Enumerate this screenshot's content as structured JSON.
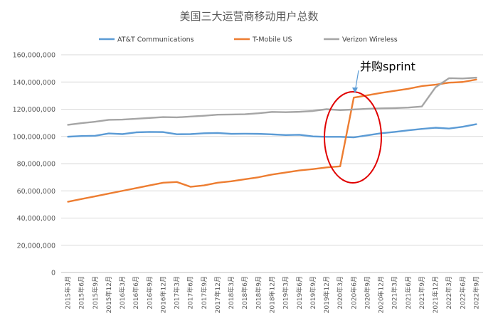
{
  "chart_data": {
    "type": "line",
    "title": "美国三大运营商移动用户总数",
    "xlabel": "",
    "ylabel": "",
    "ylim": [
      0,
      160000000
    ],
    "y_ticks": [
      "0",
      "20,000,000",
      "40,000,000",
      "60,000,000",
      "80,000,000",
      "100,000,000",
      "120,000,000",
      "140,000,000",
      "160,000,000"
    ],
    "grid": true,
    "legend_position": "top",
    "categories": [
      "2015年3月",
      "2015年6月",
      "2015年9月",
      "2015年12月",
      "2016年3月",
      "2016年6月",
      "2016年9月",
      "2016年12月",
      "2017年3月",
      "2017年6月",
      "2017年9月",
      "2017年12月",
      "2018年3月",
      "2018年6月",
      "2018年9月",
      "2018年12月",
      "2019年3月",
      "2019年6月",
      "2019年9月",
      "2019年12月",
      "2020年3月",
      "2020年6月",
      "2020年9月",
      "2020年12月",
      "2021年3月",
      "2021年6月",
      "2021年9月",
      "2021年12月",
      "2022年3月",
      "2022年6月",
      "2022年9月"
    ],
    "series": [
      {
        "name": "AT&T Communications",
        "color": "#5B9BD5",
        "values": [
          99800000,
          100300000,
          100500000,
          102200000,
          101700000,
          103000000,
          103300000,
          103200000,
          101600000,
          101700000,
          102300000,
          102500000,
          101900000,
          102000000,
          101900000,
          101500000,
          101000000,
          101200000,
          100000000,
          99700000,
          99700000,
          99300000,
          100800000,
          102300000,
          103300000,
          104500000,
          105500000,
          106400000,
          105800000,
          107100000,
          109000000
        ]
      },
      {
        "name": "T-Mobile US",
        "color": "#ED7D31",
        "values": [
          52000000,
          54000000,
          56000000,
          58000000,
          60000000,
          62000000,
          64000000,
          66000000,
          66500000,
          63000000,
          64000000,
          66000000,
          67000000,
          68500000,
          70000000,
          72000000,
          73500000,
          75000000,
          76000000,
          77200000,
          78000000,
          128500000,
          130200000,
          132000000,
          133500000,
          135000000,
          137000000,
          138000000,
          139500000,
          140000000,
          141800000
        ]
      },
      {
        "name": "Verizon Wireless",
        "color": "#A5A5A5",
        "values": [
          108500000,
          109800000,
          110800000,
          112200000,
          112400000,
          113000000,
          113600000,
          114200000,
          114000000,
          114600000,
          115200000,
          116000000,
          116100000,
          116300000,
          117000000,
          118000000,
          117800000,
          118100000,
          118700000,
          120000000,
          119300000,
          119800000,
          120300000,
          120600000,
          120800000,
          121200000,
          122000000,
          136000000,
          142800000,
          142600000,
          143200000
        ]
      }
    ],
    "annotation": {
      "text": "并购sprint",
      "arrow_color": "#5B9BD5",
      "ellipse_color": "#E00000"
    }
  }
}
